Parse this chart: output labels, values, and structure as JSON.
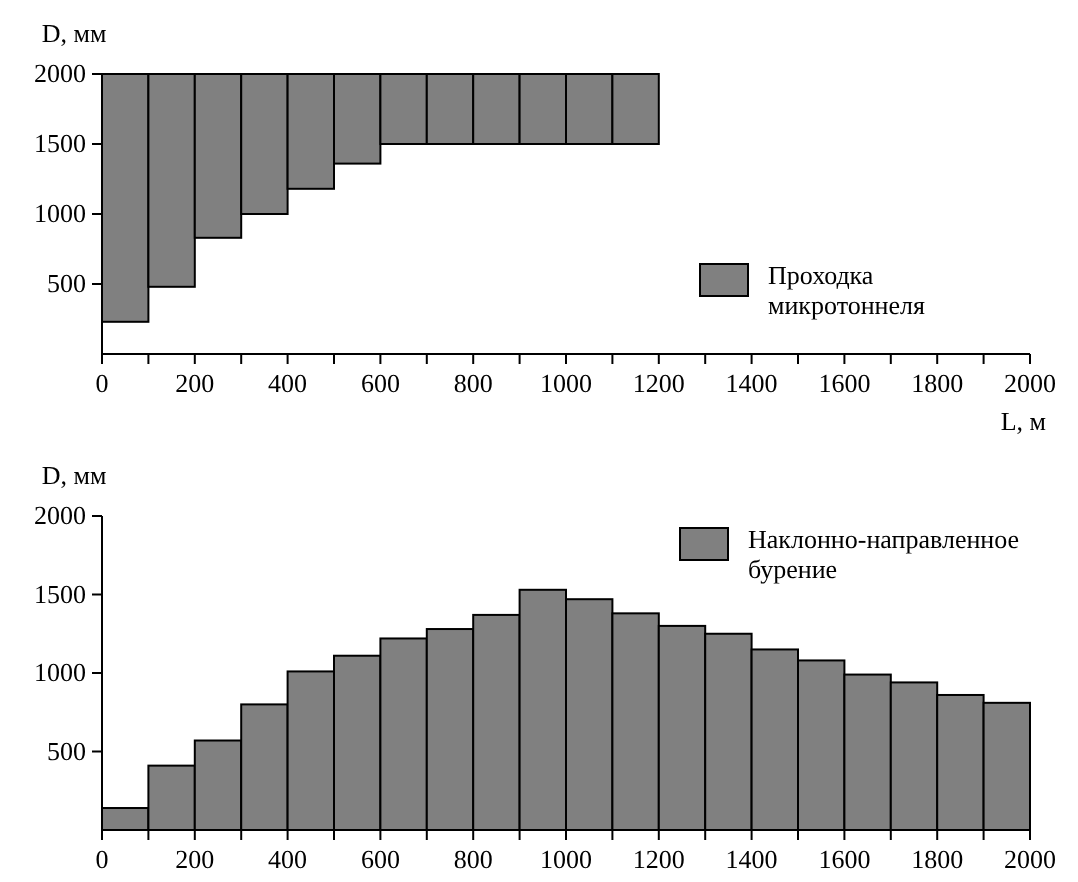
{
  "chart_data": [
    {
      "type": "bar",
      "xlabel": "L, м",
      "ylabel": "D, мм",
      "x": [
        50,
        150,
        250,
        350,
        450,
        550,
        650,
        750,
        850,
        950,
        1050,
        1150
      ],
      "series": [
        {
          "name": "Проходка микротоннеля",
          "color": "#808080",
          "base": [
            230,
            480,
            830,
            1000,
            1180,
            1360,
            1500,
            1500,
            1500,
            1500,
            1500,
            1500
          ],
          "values": [
            1770,
            1520,
            1170,
            1000,
            820,
            640,
            500,
            500,
            500,
            500,
            500,
            500
          ]
        }
      ],
      "xlim": [
        0,
        2000
      ],
      "xticks": [
        0,
        {
          "value": 100,
          "label": null
        },
        200,
        {
          "value": 300,
          "label": null
        },
        400,
        {
          "value": 500,
          "label": null
        },
        600,
        {
          "value": 700,
          "label": null
        },
        800,
        {
          "value": 900,
          "label": null
        },
        1000,
        {
          "value": 1100,
          "label": null
        },
        1200,
        {
          "value": 1300,
          "label": null
        },
        1400,
        {
          "value": 1500,
          "label": null
        },
        1600,
        {
          "value": 1700,
          "label": null
        },
        1800,
        {
          "value": 1900,
          "label": null
        },
        2000
      ],
      "ylim": [
        0,
        2000
      ],
      "yticks": [
        500,
        1000,
        1500,
        2000
      ],
      "legend": "right"
    },
    {
      "type": "histogram",
      "ylabel": "D, мм",
      "bins": [
        0,
        100,
        200,
        300,
        400,
        500,
        600,
        700,
        800,
        900,
        1000,
        1100,
        1200,
        1300,
        1400,
        1500,
        1600,
        1700,
        1800,
        1900,
        2000
      ],
      "series": [
        {
          "name": "Наклонно-направленное бурение",
          "color": "#808080",
          "values": [
            140,
            410,
            570,
            800,
            1010,
            1110,
            1220,
            1280,
            1370,
            1530,
            1470,
            1380,
            1300,
            1250,
            1150,
            1080,
            990,
            940,
            860,
            810
          ]
        }
      ],
      "xlim": [
        0,
        2000
      ],
      "xticks": [
        0,
        {
          "value": 100,
          "label": null
        },
        200,
        {
          "value": 300,
          "label": null
        },
        400,
        {
          "value": 500,
          "label": null
        },
        600,
        {
          "value": 700,
          "label": null
        },
        800,
        {
          "value": 900,
          "label": null
        },
        1000,
        {
          "value": 1100,
          "label": null
        },
        1200,
        {
          "value": 1300,
          "label": null
        },
        1400,
        {
          "value": 1500,
          "label": null
        },
        1600,
        {
          "value": 1700,
          "label": null
        },
        1800,
        {
          "value": 1900,
          "label": null
        },
        2000
      ],
      "ylim": [
        0,
        2000
      ],
      "yticks": [
        500,
        1000,
        1500,
        2000
      ],
      "legend": "top right"
    }
  ]
}
